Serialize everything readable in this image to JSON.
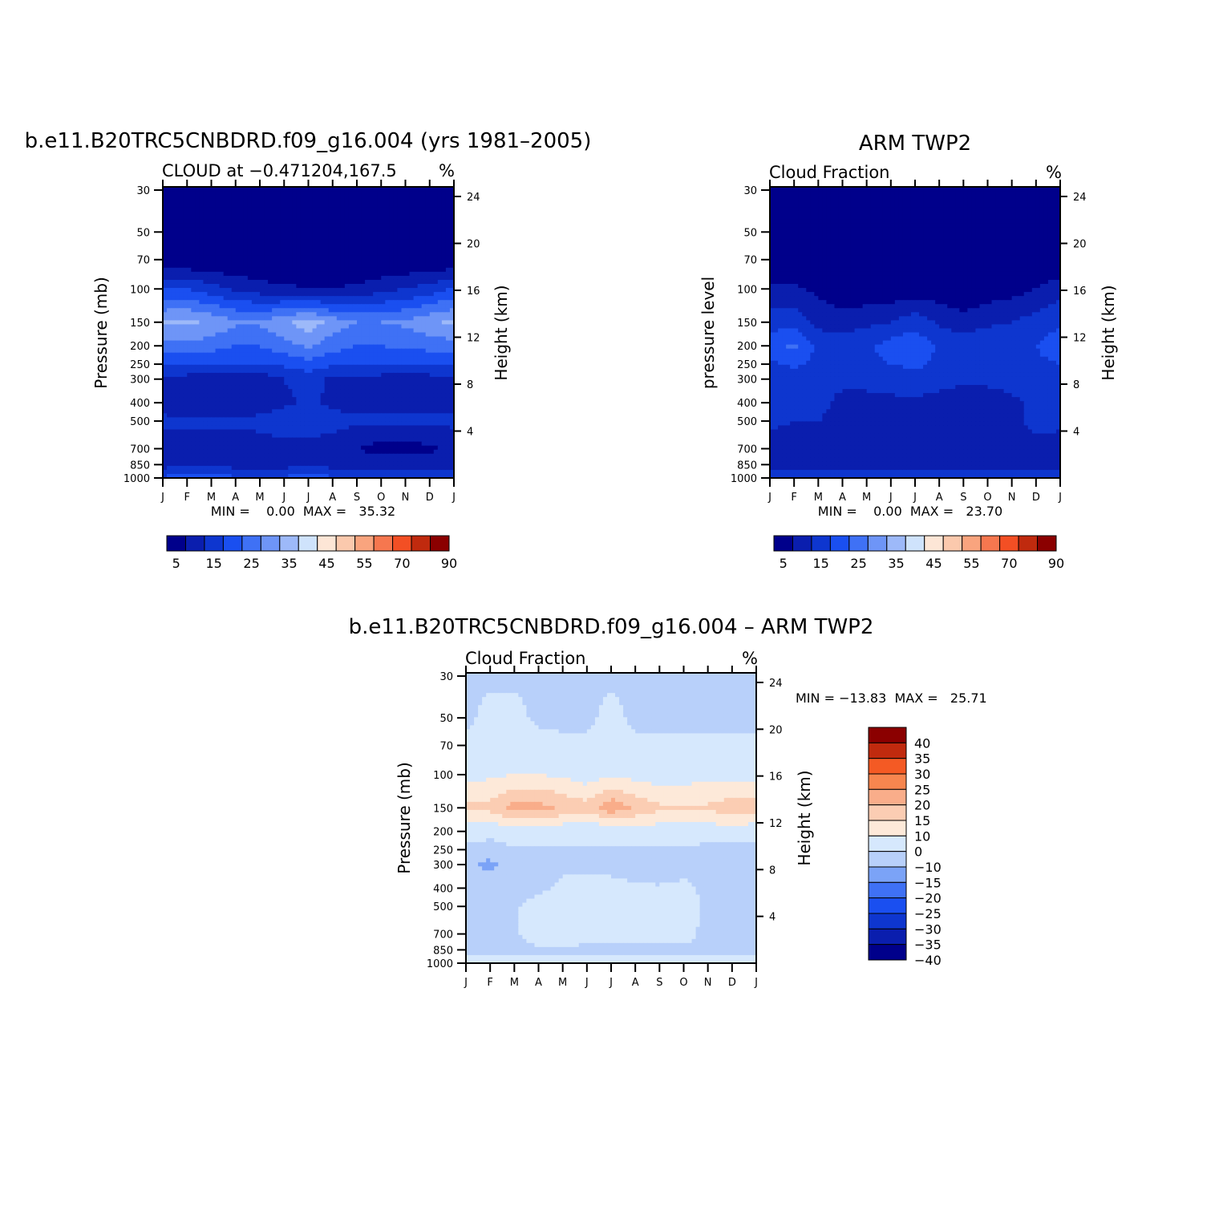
{
  "palettes": {
    "cloud": [
      "#00008b",
      "#0a1eae",
      "#0e36cf",
      "#1a4ff0",
      "#3f71f5",
      "#6e95f7",
      "#9db9f9",
      "#cfe3fc",
      "#fde6d6",
      "#fbc9ad",
      "#f9a47e",
      "#f6774f",
      "#f34f24",
      "#c02a0e",
      "#8b0000"
    ],
    "diff": [
      "#00008b",
      "#0a1eae",
      "#0e36cf",
      "#1a4ff0",
      "#3f71f5",
      "#7ba3f7",
      "#b8d0fa",
      "#d6e8fd",
      "#fde9d9",
      "#fbcdb3",
      "#f9ad8a",
      "#f7864f",
      "#f45a24",
      "#c02a0e",
      "#8b0000"
    ]
  },
  "charts": {
    "model": {
      "title": "b.e11.B20TRC5CNBDRD.f09_g16.004 (yrs 1981–2005)",
      "subtitle_left": "CLOUD at −0.471204,167.5",
      "subtitle_right": "%",
      "ylabel": "Pressure (mb)",
      "ylabel_right": "Height (km)",
      "minmax": "MIN =    0.00  MAX =   35.32",
      "colorbar_labels": [
        "5",
        "15",
        "25",
        "35",
        "45",
        "55",
        "70",
        "90"
      ]
    },
    "obs": {
      "title": "ARM TWP2",
      "subtitle_left": "Cloud Fraction",
      "subtitle_right": "%",
      "ylabel": "pressure level",
      "ylabel_right": "Height (km)",
      "minmax": "MIN =    0.00  MAX =   23.70",
      "colorbar_labels": [
        "5",
        "15",
        "25",
        "35",
        "45",
        "55",
        "70",
        "90"
      ]
    },
    "diff": {
      "title": "b.e11.B20TRC5CNBDRD.f09_g16.004 – ARM TWP2",
      "subtitle_left": "Cloud Fraction",
      "subtitle_right": "%",
      "ylabel": "Pressure (mb)",
      "ylabel_right": "Height (km)",
      "minmax": "MIN = −13.83  MAX =   25.71",
      "colorbar_labels": [
        "40",
        "35",
        "30",
        "25",
        "20",
        "15",
        "10",
        "0",
        "−10",
        "−15",
        "−20",
        "−25",
        "−30",
        "−35",
        "−40"
      ]
    }
  },
  "chart_data": [
    {
      "type": "heatmap",
      "title": "b.e11.B20TRC5CNBDRD.f09_g16.004 (yrs 1981–2005)",
      "subtitle": "CLOUD at −0.471204,167.5",
      "units": "%",
      "xlabel": "",
      "ylabel": "Pressure (mb)",
      "ylabel_right": "Height (km)",
      "x": [
        "J",
        "F",
        "M",
        "A",
        "M",
        "J",
        "J",
        "A",
        "S",
        "O",
        "N",
        "D",
        "J"
      ],
      "y_ticks": [
        30,
        50,
        70,
        100,
        150,
        200,
        250,
        300,
        400,
        500,
        700,
        850,
        1000
      ],
      "y_right_ticks": [
        24,
        20,
        16,
        12,
        8,
        4
      ],
      "levels": [
        0,
        5,
        10,
        15,
        20,
        25,
        30,
        35,
        40,
        45,
        50,
        55,
        60,
        70,
        80,
        90
      ],
      "min": 0.0,
      "max": 35.32,
      "values": [
        [
          0,
          0,
          0,
          0,
          0,
          0,
          0,
          0,
          0,
          0,
          0,
          0,
          0
        ],
        [
          0,
          0,
          0,
          0,
          0,
          0,
          0,
          0,
          0,
          0,
          0,
          0,
          0
        ],
        [
          0,
          0,
          0,
          0,
          0,
          0,
          0,
          0,
          0,
          0,
          0,
          0,
          0
        ],
        [
          16,
          15,
          12,
          9,
          7,
          6,
          5,
          5,
          6,
          8,
          10,
          12,
          16
        ],
        [
          30,
          31,
          29,
          26,
          26,
          29,
          33,
          28,
          25,
          25,
          26,
          29,
          31
        ],
        [
          23,
          24,
          22,
          20,
          20,
          23,
          26,
          22,
          20,
          20,
          21,
          22,
          23
        ],
        [
          15,
          15,
          15,
          15,
          15,
          16,
          18,
          16,
          16,
          15,
          15,
          15,
          15
        ],
        [
          9,
          8,
          6,
          6,
          7,
          10,
          12,
          9,
          8,
          8,
          8,
          8,
          9
        ],
        [
          8,
          7,
          6,
          6,
          6,
          9,
          11,
          9,
          8,
          8,
          8,
          8,
          8
        ],
        [
          11,
          11,
          11,
          11,
          12,
          14,
          14,
          12,
          11,
          11,
          11,
          11,
          11
        ],
        [
          8,
          8,
          7,
          7,
          7,
          8,
          8,
          7,
          5,
          3,
          3,
          4,
          7
        ],
        [
          8,
          8,
          8,
          8,
          8,
          8,
          8,
          8,
          8,
          8,
          8,
          8,
          8
        ],
        [
          16,
          17,
          17,
          16,
          16,
          16,
          17,
          16,
          16,
          16,
          16,
          16,
          16
        ]
      ]
    },
    {
      "type": "heatmap",
      "title": "ARM TWP2",
      "subtitle": "Cloud Fraction",
      "units": "%",
      "xlabel": "",
      "ylabel": "pressure level",
      "ylabel_right": "Height (km)",
      "x": [
        "J",
        "F",
        "M",
        "A",
        "M",
        "J",
        "J",
        "A",
        "S",
        "O",
        "N",
        "D",
        "J"
      ],
      "y_ticks": [
        30,
        50,
        70,
        100,
        150,
        200,
        250,
        300,
        400,
        500,
        700,
        850,
        1000
      ],
      "y_right_ticks": [
        24,
        20,
        16,
        12,
        8,
        4
      ],
      "levels": [
        0,
        5,
        10,
        15,
        20,
        25,
        30,
        35,
        40,
        45,
        50,
        55,
        60,
        70,
        80,
        90
      ],
      "min": 0.0,
      "max": 23.7,
      "values": [
        [
          0,
          0,
          0,
          0,
          0,
          0,
          0,
          0,
          0,
          0,
          0,
          0,
          0
        ],
        [
          0,
          0,
          0,
          0,
          0,
          0,
          0,
          0,
          0,
          0,
          0,
          0,
          0
        ],
        [
          0,
          0,
          0,
          0,
          0,
          0,
          0,
          0,
          0,
          0,
          0,
          0,
          0
        ],
        [
          6,
          6,
          4,
          2,
          1,
          1,
          2,
          2,
          1,
          2,
          3,
          5,
          8
        ],
        [
          13,
          13,
          8,
          7,
          9,
          10,
          13,
          9,
          7,
          9,
          10,
          12,
          14
        ],
        [
          18,
          21,
          14,
          14,
          14,
          17,
          19,
          14,
          13,
          14,
          14,
          15,
          18
        ],
        [
          14,
          16,
          13,
          14,
          14,
          15,
          16,
          14,
          13,
          13,
          13,
          14,
          15
        ],
        [
          12,
          12,
          11,
          11,
          11,
          12,
          13,
          12,
          11,
          12,
          12,
          12,
          13
        ],
        [
          12,
          12,
          11,
          9,
          9,
          9,
          9,
          8,
          7,
          6,
          9,
          11,
          12
        ],
        [
          11,
          10,
          10,
          9,
          8,
          8,
          7,
          7,
          6,
          5,
          8,
          12,
          11
        ],
        [
          8,
          8,
          7,
          7,
          5,
          7,
          7,
          7,
          6,
          6,
          8,
          8,
          8
        ],
        [
          7,
          7,
          6,
          6,
          6,
          6,
          6,
          6,
          6,
          6,
          7,
          7,
          7
        ],
        [
          15,
          15,
          14,
          14,
          14,
          14,
          14,
          14,
          14,
          14,
          14,
          14,
          15
        ]
      ]
    },
    {
      "type": "heatmap",
      "title": "b.e11.B20TRC5CNBDRD.f09_g16.004 – ARM TWP2",
      "subtitle": "Cloud Fraction",
      "units": "%",
      "xlabel": "",
      "ylabel": "Pressure (mb)",
      "ylabel_right": "Height (km)",
      "x": [
        "J",
        "F",
        "M",
        "A",
        "M",
        "J",
        "J",
        "A",
        "S",
        "O",
        "N",
        "D",
        "J"
      ],
      "y_ticks": [
        30,
        50,
        70,
        100,
        150,
        200,
        250,
        300,
        400,
        500,
        700,
        850,
        1000
      ],
      "y_right_ticks": [
        24,
        20,
        16,
        12,
        8,
        4
      ],
      "levels": [
        -40,
        -35,
        -30,
        -25,
        -20,
        -15,
        -10,
        0,
        10,
        15,
        20,
        25,
        30,
        35,
        40
      ],
      "min": -13.83,
      "max": 25.71,
      "values": [
        [
          -2,
          -2,
          -2,
          -2,
          -2,
          -2,
          -2,
          -2,
          -2,
          -2,
          -2,
          -2,
          -2
        ],
        [
          -2,
          3,
          3,
          -2,
          -2,
          -2,
          3,
          -2,
          -2,
          -2,
          -2,
          -2,
          -2
        ],
        [
          2,
          4,
          4,
          3,
          2,
          2,
          4,
          2,
          2,
          2,
          2,
          2,
          2
        ],
        [
          8,
          9,
          10,
          10,
          9,
          7,
          9,
          8,
          7,
          8,
          8,
          8,
          8
        ],
        [
          16,
          17,
          22,
          22,
          19,
          17,
          24,
          19,
          16,
          15,
          16,
          18,
          18
        ],
        [
          6,
          5,
          8,
          7,
          6,
          5,
          6,
          7,
          7,
          6,
          7,
          7,
          6
        ],
        [
          -4,
          -6,
          -2,
          -2,
          -2,
          -1,
          -1,
          -2,
          -1,
          -1,
          -4,
          -5,
          -5
        ],
        [
          -8,
          -12,
          -5,
          -4,
          -2,
          -2,
          -2,
          -3,
          -6,
          -3,
          -5,
          -6,
          -6
        ],
        [
          -5,
          -5,
          -4,
          -2,
          2,
          3,
          2,
          1,
          1,
          2,
          -2,
          -4,
          -5
        ],
        [
          -3,
          -2,
          -1,
          3,
          4,
          6,
          8,
          4,
          5,
          5,
          -2,
          -4,
          -3
        ],
        [
          -2,
          -2,
          -1,
          3,
          3,
          2,
          2,
          1,
          2,
          2,
          -2,
          -2,
          -2
        ],
        [
          -1,
          -1,
          -1,
          -1,
          -1,
          -1,
          -1,
          -1,
          -1,
          -1,
          -1,
          -1,
          -1
        ],
        [
          2,
          2,
          2,
          2,
          2,
          3,
          3,
          2,
          2,
          2,
          2,
          2,
          2
        ]
      ]
    }
  ]
}
